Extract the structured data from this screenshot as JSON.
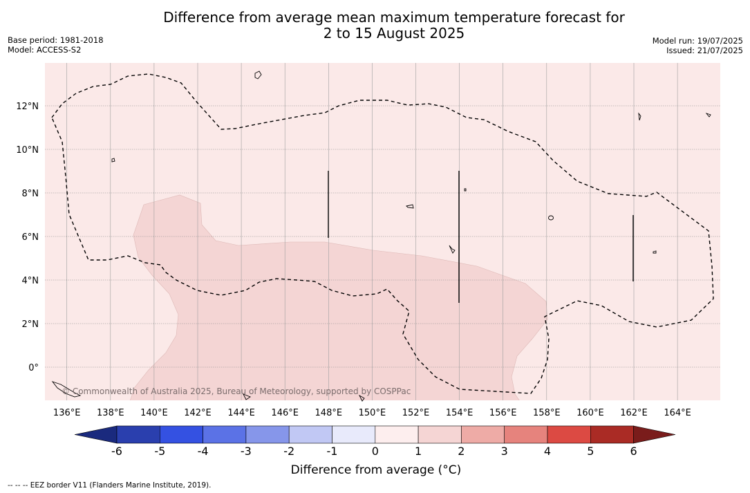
{
  "title": {
    "line1": "Difference from average mean maximum temperature forecast for",
    "line2": "2 to 15 August 2025"
  },
  "meta_left": {
    "base_period": "Base period: 1981-2018",
    "model": "Model: ACCESS-S2"
  },
  "meta_right": {
    "model_run": "Model run: 19/07/2025",
    "issued": "Issued: 21/07/2025"
  },
  "map": {
    "x_tick_labels": [
      "136°E",
      "138°E",
      "140°E",
      "142°E",
      "144°E",
      "146°E",
      "148°E",
      "150°E",
      "152°E",
      "154°E",
      "156°E",
      "158°E",
      "160°E",
      "162°E",
      "164°E"
    ],
    "y_tick_labels": [
      "12°N",
      "10°N",
      "8°N",
      "6°N",
      "4°N",
      "2°N",
      "0°"
    ],
    "copyright": "© Commonwealth of Australia 2025, Bureau of Meteorology, supported by COSPPac",
    "background_color": "#fbe9e8",
    "anomaly_fill_color": "#f4d5d4"
  },
  "colorbar": {
    "label": "Difference from average (°C)",
    "ticks": [
      "-6",
      "-5",
      "-4",
      "-3",
      "-2",
      "-1",
      "0",
      "1",
      "2",
      "3",
      "4",
      "5",
      "6"
    ],
    "colors": [
      "#1a2a7e",
      "#2a3fae",
      "#3451e2",
      "#5b72e6",
      "#8696ea",
      "#c1c8f4",
      "#e8eafb",
      "#fdeeee",
      "#f5d5d4",
      "#eeaba6",
      "#e6837d",
      "#dc4a43",
      "#aa2b25",
      "#7a1c1b"
    ]
  },
  "footer": {
    "note": "--  --  -- EEZ border V11 (Flanders Marine Institute, 2019)."
  }
}
